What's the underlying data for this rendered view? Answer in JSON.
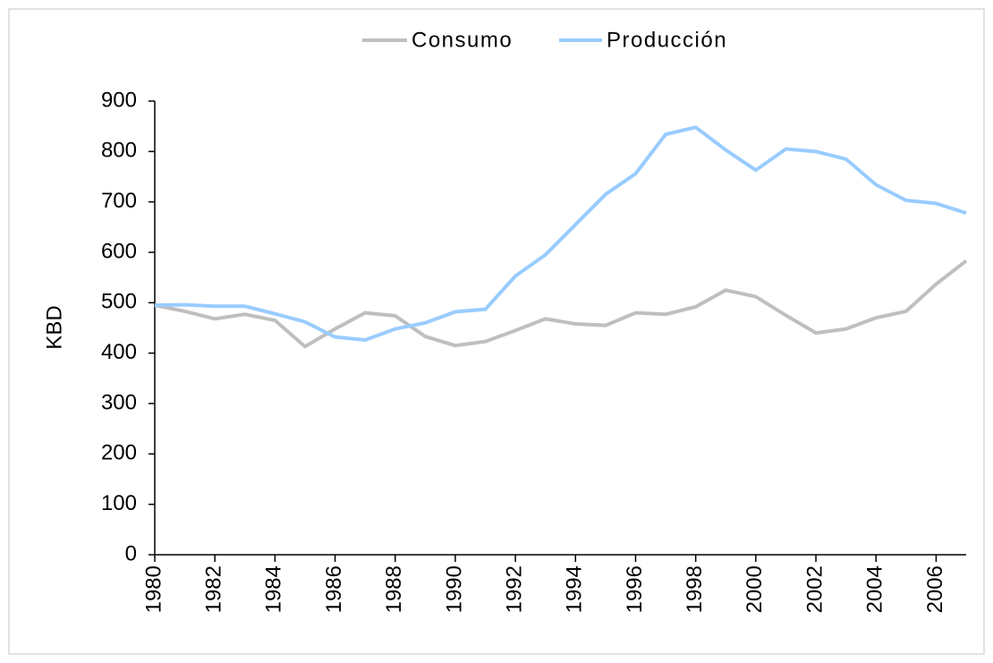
{
  "chart_data": {
    "type": "line",
    "y_label": "KBD",
    "x": [
      1980,
      1981,
      1982,
      1983,
      1984,
      1985,
      1986,
      1987,
      1988,
      1989,
      1990,
      1991,
      1992,
      1993,
      1994,
      1995,
      1996,
      1997,
      1998,
      1999,
      2000,
      2001,
      2002,
      2003,
      2004,
      2005,
      2006,
      2007
    ],
    "series": [
      {
        "name": "Consumo",
        "color": "#bfbfbf",
        "values": [
          495,
          483,
          468,
          477,
          465,
          413,
          448,
          480,
          474,
          433,
          415,
          423,
          445,
          468,
          458,
          455,
          480,
          477,
          492,
          525,
          512,
          475,
          440,
          448,
          470,
          483,
          537,
          583
        ]
      },
      {
        "name": "Producción",
        "color": "#99ccff",
        "values": [
          495,
          496,
          493,
          493,
          478,
          462,
          432,
          426,
          448,
          460,
          482,
          487,
          553,
          595,
          655,
          715,
          756,
          834,
          848,
          803,
          763,
          805,
          800,
          785,
          734,
          703,
          697,
          678
        ]
      }
    ],
    "xlim": [
      1980,
      2007
    ],
    "xticks": [
      1980,
      1982,
      1984,
      1986,
      1988,
      1990,
      1992,
      1994,
      1996,
      1998,
      2000,
      2002,
      2004,
      2006
    ],
    "ylim": [
      0,
      900
    ],
    "yticks": [
      0,
      100,
      200,
      300,
      400,
      500,
      600,
      700,
      800,
      900
    ],
    "legend": "top"
  }
}
